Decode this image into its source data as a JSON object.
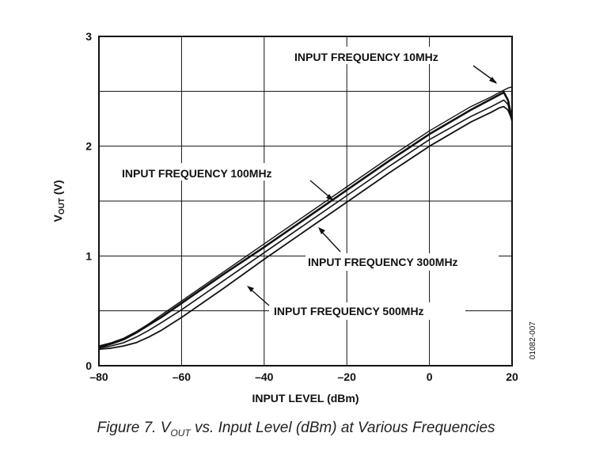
{
  "chart_data": {
    "type": "line",
    "xlabel": "INPUT LEVEL (dBm)",
    "ylabel": "VOUT (V)",
    "ylabel_main": "V",
    "ylabel_sub": "OUT",
    "ylabel_unit": " (V)",
    "xlim": [
      -80,
      20
    ],
    "ylim": [
      0,
      3
    ],
    "xticks": [
      -80,
      -60,
      -40,
      -20,
      0,
      20
    ],
    "xtick_labels": [
      "–80",
      "–60",
      "–40",
      "–20",
      "0",
      "20"
    ],
    "yticks": [
      0,
      1,
      2,
      3
    ],
    "ytick_labels": [
      "0",
      "1",
      "2",
      "3"
    ],
    "grid": true,
    "grid_y_step": 0.5,
    "series": [
      {
        "name": "INPUT FREQUENCY 10MHz",
        "x": [
          -80,
          -77,
          -74,
          -71,
          -68,
          -65,
          -60,
          -50,
          -40,
          -30,
          -20,
          -10,
          0,
          10,
          15,
          18,
          19,
          20
        ],
        "y": [
          0.18,
          0.21,
          0.25,
          0.31,
          0.38,
          0.46,
          0.59,
          0.85,
          1.11,
          1.37,
          1.63,
          1.89,
          2.14,
          2.36,
          2.45,
          2.51,
          2.53,
          2.54
        ]
      },
      {
        "name": "INPUT FREQUENCY 100MHz",
        "x": [
          -80,
          -77,
          -74,
          -71,
          -68,
          -65,
          -60,
          -50,
          -40,
          -30,
          -20,
          -10,
          0,
          10,
          15,
          17,
          18,
          19,
          20
        ],
        "y": [
          0.17,
          0.2,
          0.24,
          0.3,
          0.37,
          0.44,
          0.57,
          0.83,
          1.08,
          1.34,
          1.6,
          1.86,
          2.11,
          2.33,
          2.43,
          2.47,
          2.49,
          2.42,
          2.24
        ]
      },
      {
        "name": "INPUT FREQUENCY 300MHz",
        "x": [
          -80,
          -77,
          -74,
          -71,
          -68,
          -65,
          -60,
          -50,
          -40,
          -30,
          -20,
          -10,
          0,
          10,
          15,
          17,
          18,
          19,
          20
        ],
        "y": [
          0.16,
          0.18,
          0.21,
          0.26,
          0.32,
          0.39,
          0.51,
          0.77,
          1.03,
          1.29,
          1.55,
          1.81,
          2.06,
          2.27,
          2.36,
          2.4,
          2.42,
          2.38,
          2.22
        ]
      },
      {
        "name": "INPUT FREQUENCY 500MHz",
        "x": [
          -80,
          -77,
          -74,
          -71,
          -68,
          -65,
          -60,
          -50,
          -40,
          -30,
          -20,
          -10,
          0,
          10,
          15,
          17,
          18,
          19,
          20
        ],
        "y": [
          0.15,
          0.16,
          0.18,
          0.21,
          0.26,
          0.32,
          0.44,
          0.7,
          0.97,
          1.23,
          1.49,
          1.75,
          2.0,
          2.22,
          2.31,
          2.35,
          2.36,
          2.33,
          2.24
        ]
      }
    ],
    "annotations": [
      {
        "text": "INPUT FREQUENCY 10MHz",
        "series": 0
      },
      {
        "text": "INPUT FREQUENCY 100MHz",
        "series": 1
      },
      {
        "text": "INPUT FREQUENCY 300MHz",
        "series": 2
      },
      {
        "text": "INPUT FREQUENCY 500MHz",
        "series": 3
      }
    ],
    "figure_id": "01082-007"
  },
  "caption": {
    "prefix": "Figure 7. V",
    "sub": "OUT",
    "suffix": " vs. Input Level (dBm) at Various Frequencies"
  }
}
